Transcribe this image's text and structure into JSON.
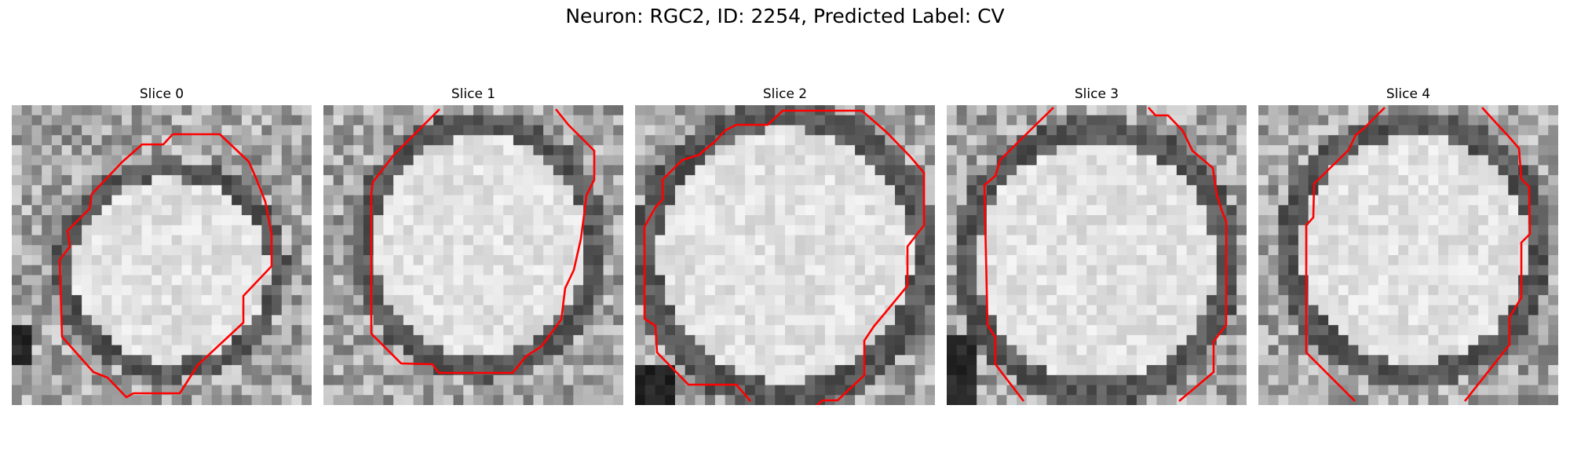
{
  "figure": {
    "title": "Neuron: RGC2, ID: 2254, Predicted Label: CV"
  },
  "colors": {
    "contour": "#ff0000"
  },
  "panels": [
    {
      "title": "Slice 0"
    },
    {
      "title": "Slice 1"
    },
    {
      "title": "Slice 2"
    },
    {
      "title": "Slice 3"
    },
    {
      "title": "Slice 4"
    }
  ]
}
